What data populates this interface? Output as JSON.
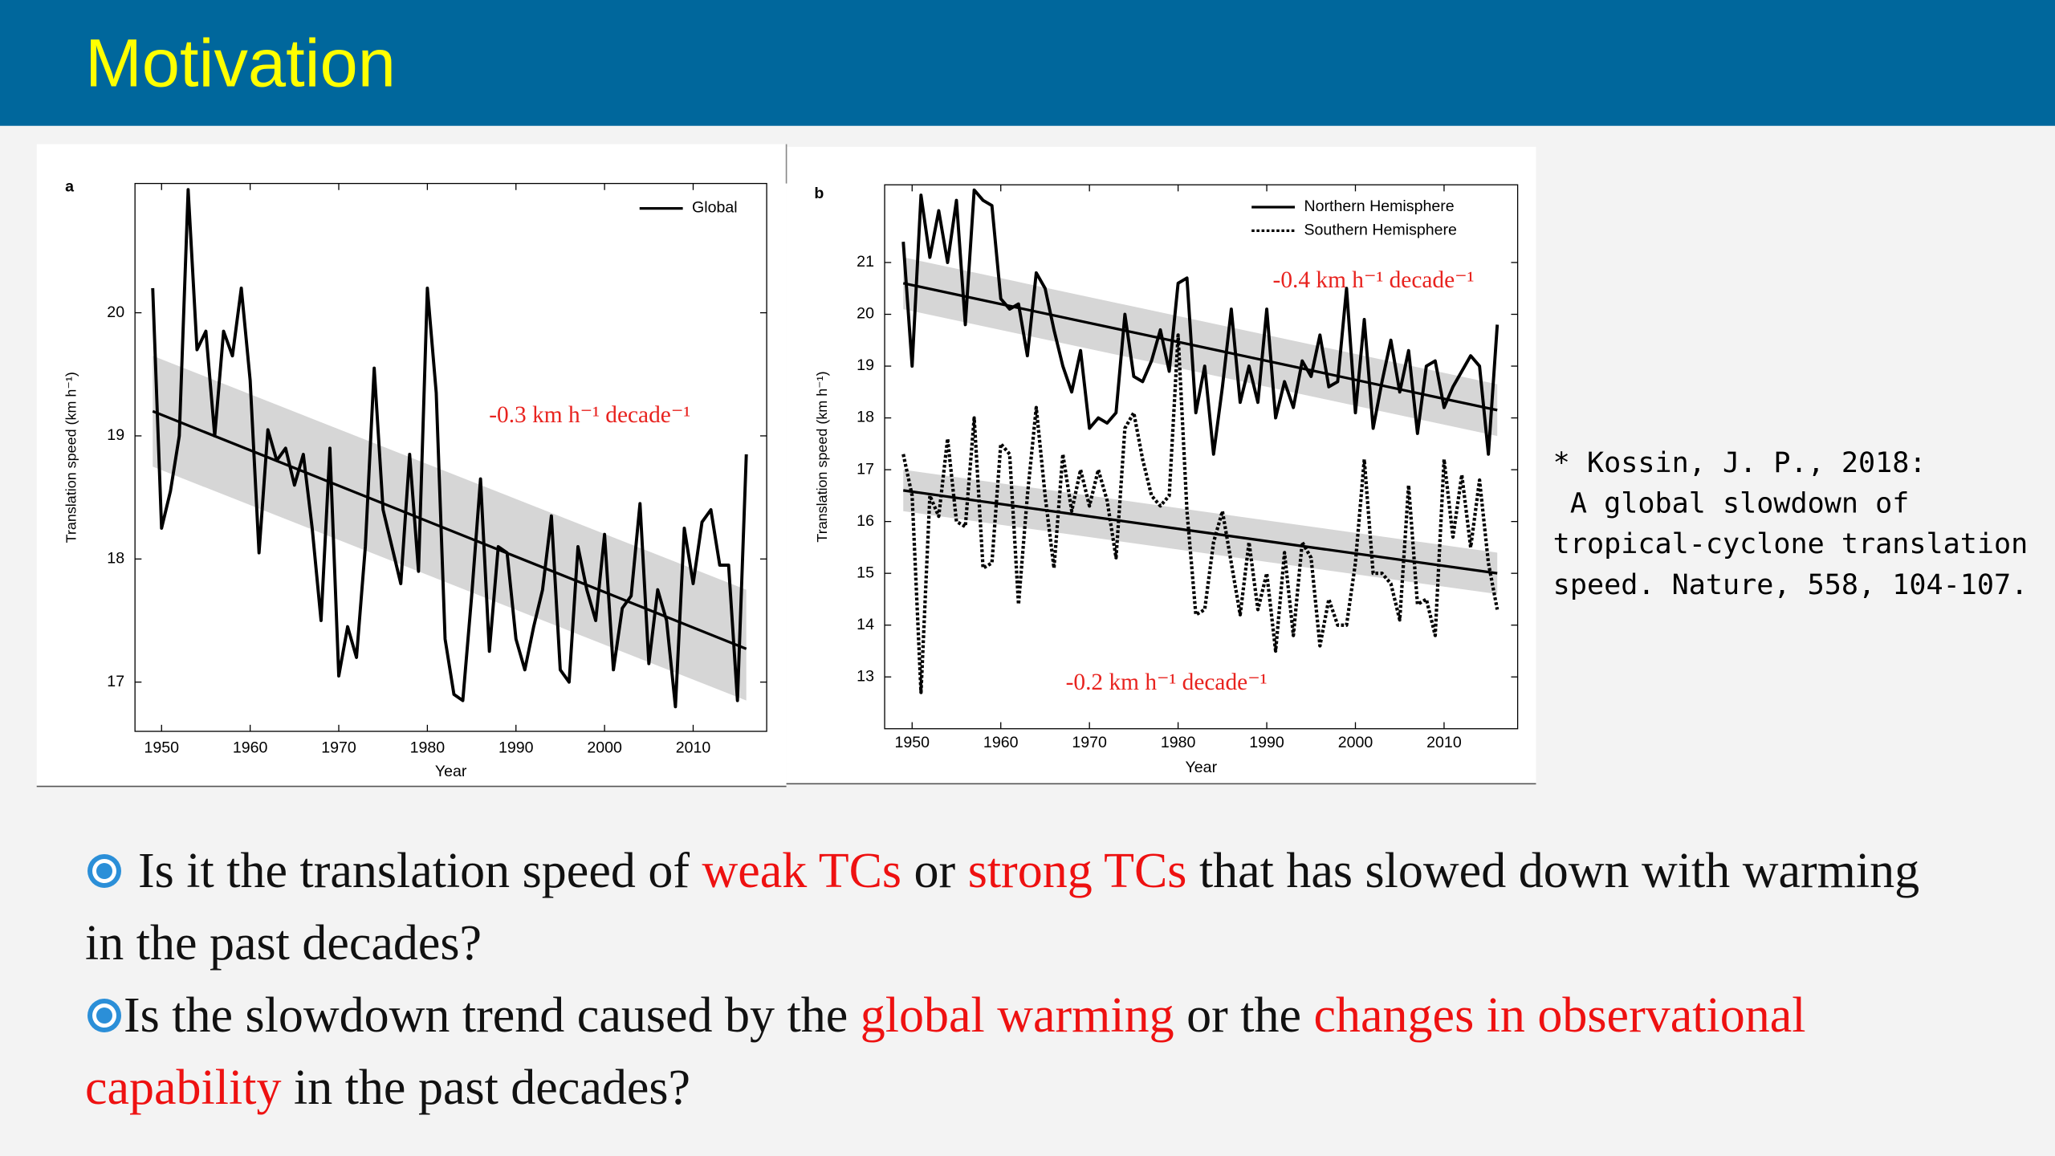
{
  "header": {
    "title": "Motivation"
  },
  "chart_data": [
    {
      "type": "line",
      "panel": "a",
      "xlabel": "Year",
      "ylabel": "Translation speed (km h⁻¹)",
      "x": [
        1949,
        1950,
        1951,
        1952,
        1953,
        1954,
        1955,
        1956,
        1957,
        1958,
        1959,
        1960,
        1961,
        1962,
        1963,
        1964,
        1965,
        1966,
        1967,
        1968,
        1969,
        1970,
        1971,
        1972,
        1973,
        1974,
        1975,
        1976,
        1977,
        1978,
        1979,
        1980,
        1981,
        1982,
        1983,
        1984,
        1985,
        1986,
        1987,
        1988,
        1989,
        1990,
        1991,
        1992,
        1993,
        1994,
        1995,
        1996,
        1997,
        1998,
        1999,
        2000,
        2001,
        2002,
        2003,
        2004,
        2005,
        2006,
        2007,
        2008,
        2009,
        2010,
        2011,
        2012,
        2013,
        2014,
        2015,
        2016
      ],
      "xlim": [
        1947,
        2018.3
      ],
      "ylim": [
        16.6,
        21.05
      ],
      "xticks": [
        1950,
        1960,
        1970,
        1980,
        1990,
        2000,
        2010
      ],
      "yticks": [
        17,
        18,
        19,
        20
      ],
      "series": [
        {
          "name": "Global",
          "color": "#000000",
          "style": "solid",
          "values": [
            20.2,
            18.25,
            18.55,
            19.0,
            21.0,
            19.7,
            19.85,
            19.0,
            19.85,
            19.65,
            20.2,
            19.45,
            18.05,
            19.05,
            18.8,
            18.9,
            18.6,
            18.85,
            18.25,
            17.5,
            18.9,
            17.05,
            17.45,
            17.2,
            18.1,
            19.55,
            18.4,
            18.1,
            17.8,
            18.85,
            17.9,
            20.2,
            19.35,
            17.35,
            16.9,
            16.85,
            17.7,
            18.65,
            17.25,
            18.1,
            18.05,
            17.35,
            17.1,
            17.45,
            17.75,
            18.35,
            17.1,
            17.0,
            18.1,
            17.75,
            17.5,
            18.2,
            17.1,
            17.6,
            17.7,
            18.45,
            17.15,
            17.75,
            17.5,
            16.8,
            18.25,
            17.8,
            18.3,
            18.4,
            17.95,
            17.95,
            16.85,
            18.85
          ],
          "trend": {
            "x": [
              1949,
              2016
            ],
            "values": [
              19.2,
              17.27
            ],
            "lower": [
              18.75,
              16.85
            ],
            "upper": [
              19.65,
              17.75
            ]
          }
        }
      ],
      "annotations": [
        "-0.3 km h⁻¹ decade⁻¹"
      ]
    },
    {
      "type": "line",
      "panel": "b",
      "xlabel": "Year",
      "ylabel": "Translation speed (km h⁻¹)",
      "x": [
        1949,
        1950,
        1951,
        1952,
        1953,
        1954,
        1955,
        1956,
        1957,
        1958,
        1959,
        1960,
        1961,
        1962,
        1963,
        1964,
        1965,
        1966,
        1967,
        1968,
        1969,
        1970,
        1971,
        1972,
        1973,
        1974,
        1975,
        1976,
        1977,
        1978,
        1979,
        1980,
        1981,
        1982,
        1983,
        1984,
        1985,
        1986,
        1987,
        1988,
        1989,
        1990,
        1991,
        1992,
        1993,
        1994,
        1995,
        1996,
        1997,
        1998,
        1999,
        2000,
        2001,
        2002,
        2003,
        2004,
        2005,
        2006,
        2007,
        2008,
        2009,
        2010,
        2011,
        2012,
        2013,
        2014,
        2015,
        2016
      ],
      "xlim": [
        1946.9,
        2018.3
      ],
      "ylim": [
        12.0,
        22.5
      ],
      "xticks": [
        1950,
        1960,
        1970,
        1980,
        1990,
        2000,
        2010
      ],
      "yticks": [
        13,
        14,
        15,
        16,
        17,
        18,
        19,
        20,
        21
      ],
      "series": [
        {
          "name": "Northern Hemisphere",
          "color": "#000000",
          "style": "solid",
          "values": [
            21.4,
            19.0,
            22.3,
            21.1,
            22.0,
            21.0,
            22.2,
            19.8,
            22.4,
            22.2,
            22.1,
            20.3,
            20.1,
            20.2,
            19.2,
            20.8,
            20.5,
            19.7,
            19.0,
            18.5,
            19.3,
            17.8,
            18.0,
            17.9,
            18.1,
            20.0,
            18.8,
            18.7,
            19.1,
            19.7,
            18.9,
            20.6,
            20.7,
            18.1,
            19.0,
            17.3,
            18.6,
            20.1,
            18.3,
            19.0,
            18.3,
            20.1,
            18.0,
            18.7,
            18.2,
            19.1,
            18.8,
            19.6,
            18.6,
            18.7,
            20.5,
            18.1,
            19.9,
            17.8,
            18.7,
            19.5,
            18.5,
            19.3,
            17.7,
            19.0,
            19.1,
            18.2,
            18.6,
            18.9,
            19.2,
            19.0,
            17.3,
            19.8
          ],
          "trend": {
            "x": [
              1949,
              2016
            ],
            "values": [
              20.6,
              18.15
            ],
            "lower": [
              20.1,
              17.65
            ],
            "upper": [
              21.1,
              18.65
            ]
          }
        },
        {
          "name": "Southern Hemisphere",
          "color": "#000000",
          "style": "dotted",
          "values": [
            17.3,
            16.5,
            12.7,
            16.5,
            16.1,
            17.6,
            16.0,
            15.9,
            18.0,
            15.1,
            15.2,
            17.5,
            17.3,
            14.4,
            16.5,
            18.2,
            16.5,
            15.1,
            17.3,
            16.2,
            17.0,
            16.3,
            17.0,
            16.4,
            15.3,
            17.8,
            18.1,
            17.2,
            16.5,
            16.3,
            16.5,
            19.6,
            16.2,
            14.2,
            14.3,
            15.6,
            16.2,
            15.2,
            14.2,
            15.6,
            14.3,
            15.0,
            13.5,
            15.4,
            13.8,
            15.6,
            15.3,
            13.6,
            14.5,
            14.0,
            14.0,
            15.2,
            17.2,
            15.0,
            15.0,
            14.8,
            14.1,
            16.7,
            14.4,
            14.5,
            13.8,
            17.2,
            15.7,
            16.9,
            15.5,
            16.8,
            15.2,
            14.3
          ],
          "trend": {
            "x": [
              1949,
              2016
            ],
            "values": [
              16.6,
              15.0
            ],
            "lower": [
              16.2,
              14.6
            ],
            "upper": [
              17.0,
              15.4
            ]
          }
        }
      ],
      "annotations": [
        "-0.4 km h⁻¹ decade⁻¹",
        "-0.2 km h⁻¹ decade⁻¹"
      ]
    }
  ],
  "citation": [
    "* Kossin, J. P., 2018:",
    " A global slowdown of",
    "tropical-cyclone translation",
    "speed. Nature, 558, 104-107."
  ],
  "bullets": [
    [
      {
        "text": "Is it the translation speed of "
      },
      {
        "text": "weak TCs",
        "emphasis": true
      },
      {
        "text": " or "
      },
      {
        "text": "strong TCs",
        "emphasis": true
      },
      {
        "text": " that has slowed down with warming in the past decades?"
      }
    ],
    [
      {
        "text": "Is the slowdown trend caused by the "
      },
      {
        "text": "global warming",
        "emphasis": true
      },
      {
        "text": " or the "
      },
      {
        "text": "changes in observational capability",
        "emphasis": true
      },
      {
        "text": " in the past decades?"
      }
    ]
  ]
}
